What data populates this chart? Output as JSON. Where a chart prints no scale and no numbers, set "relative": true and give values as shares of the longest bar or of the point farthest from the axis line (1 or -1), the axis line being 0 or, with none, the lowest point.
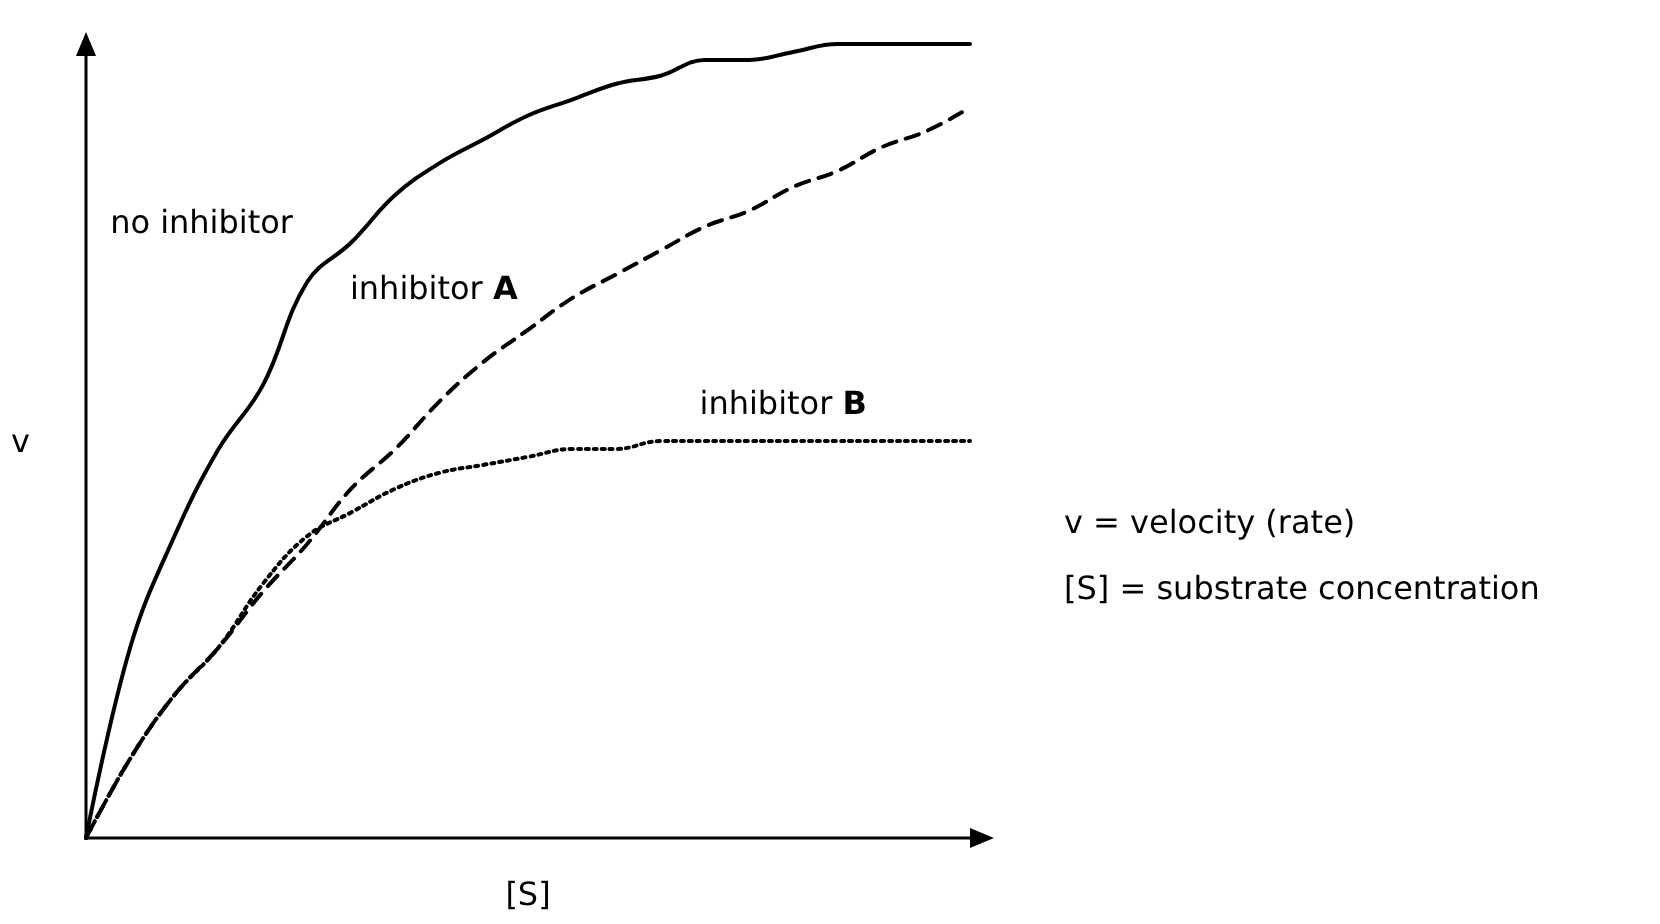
{
  "chart_data": {
    "type": "line",
    "relative": true,
    "xlabel": "[S]",
    "ylabel": "v",
    "legend": false,
    "grid": false,
    "categories": [
      null,
      null,
      null,
      null,
      null,
      null,
      null,
      null,
      null,
      null,
      null,
      null,
      null,
      null,
      null,
      null,
      null,
      null,
      null,
      null,
      null
    ],
    "series": [
      {
        "name": "no inhibitor",
        "color": "#000000",
        "line_style": "solid",
        "values": [
          0,
          0.24,
          0.38,
          0.49,
          0.57,
          0.7,
          0.75,
          0.81,
          0.85,
          0.88,
          0.91,
          0.93,
          0.95,
          0.96,
          0.98,
          0.98,
          0.99,
          1,
          1,
          1,
          1
        ]
      },
      {
        "name": "inhibitor A",
        "color": "#000000",
        "line_style": "dashed",
        "values": [
          0,
          0.1,
          0.18,
          0.24,
          0.31,
          0.37,
          0.44,
          0.49,
          0.55,
          0.6,
          0.64,
          0.68,
          0.71,
          0.74,
          0.77,
          0.79,
          0.82,
          0.84,
          0.87,
          0.89,
          0.92
        ]
      },
      {
        "name": "inhibitor B",
        "color": "#000000",
        "line_style": "dotted",
        "values": [
          0,
          0.1,
          0.18,
          0.24,
          0.32,
          0.38,
          0.41,
          0.44,
          0.46,
          0.47,
          0.48,
          0.49,
          0.49,
          0.5,
          0.5,
          0.5,
          0.5,
          0.5,
          0.5,
          0.5,
          0.5
        ]
      }
    ],
    "annotations": [
      "v = velocity (rate)",
      "[S] = substrate concentration"
    ]
  }
}
